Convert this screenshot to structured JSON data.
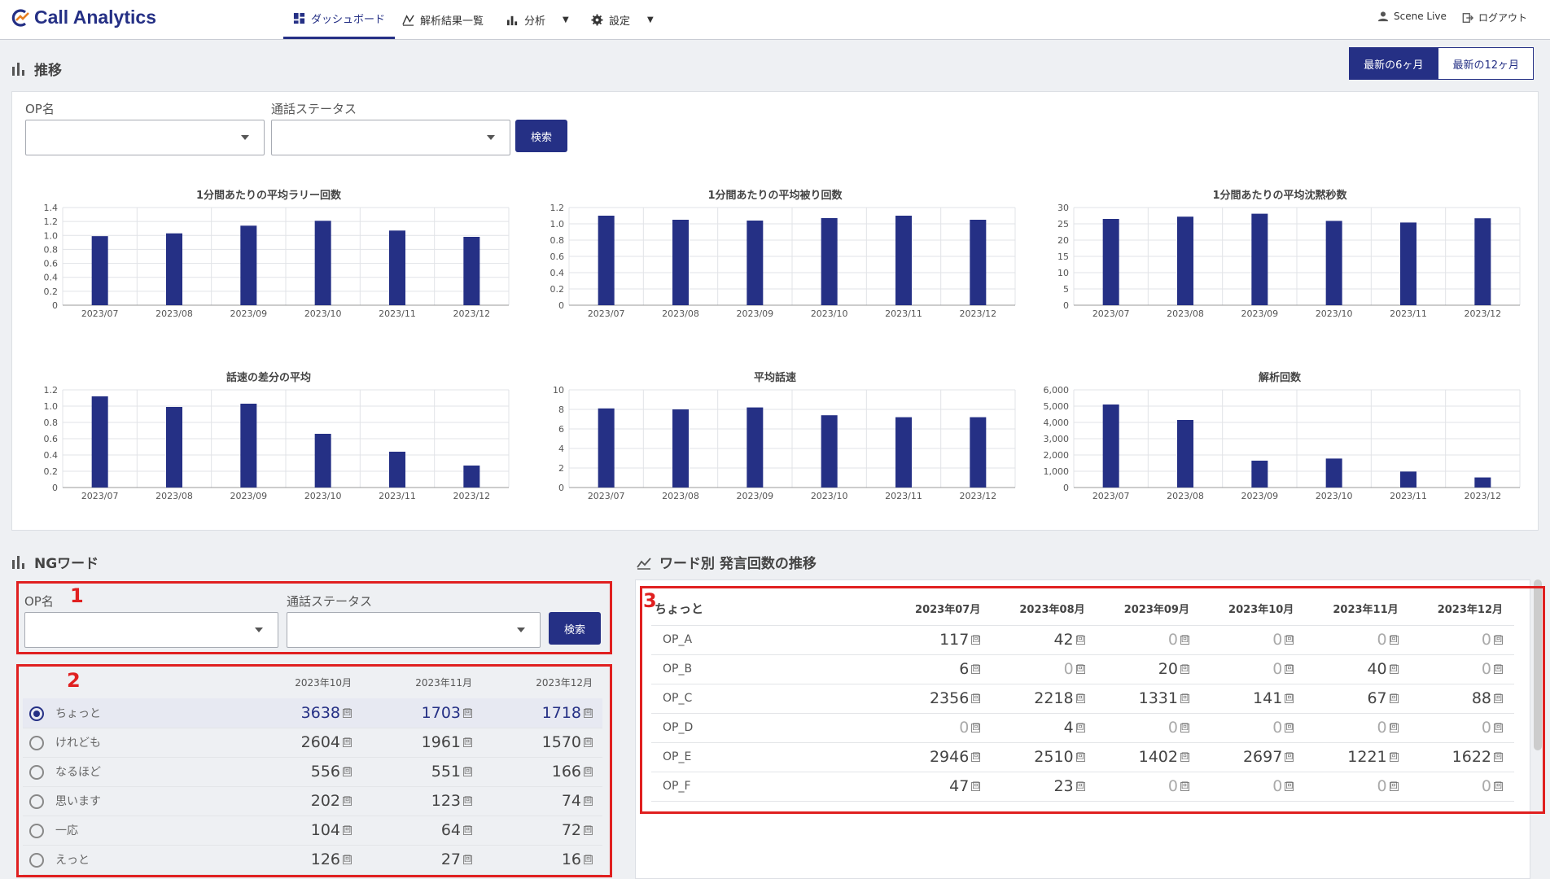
{
  "app": {
    "title": "Call Analytics"
  },
  "nav": {
    "dashboard": "ダッシュボード",
    "results": "解析結果一覧",
    "analysis": "分析",
    "settings": "設定",
    "user": "Scene Live",
    "logout": "ログアウト"
  },
  "trend": {
    "title": "推移",
    "toggle_6": "最新の6ヶ月",
    "toggle_12": "最新の12ヶ月",
    "op_label": "OP名",
    "status_label": "通話ステータス",
    "search": "検索"
  },
  "charts": [
    {
      "title": "1分間あたりの平均ラリー回数",
      "type": "bar",
      "categories": [
        "2023/07",
        "2023/08",
        "2023/09",
        "2023/10",
        "2023/11",
        "2023/12"
      ],
      "values": [
        0.99,
        1.03,
        1.14,
        1.21,
        1.07,
        0.98
      ],
      "ylim": [
        0,
        1.4
      ],
      "ticks": [
        "0",
        "0.2",
        "0.4",
        "0.6",
        "0.8",
        "1.0",
        "1.2",
        "1.4"
      ],
      "tickvals": [
        0,
        0.2,
        0.4,
        0.6,
        0.8,
        1.0,
        1.2,
        1.4
      ]
    },
    {
      "title": "1分間あたりの平均被り回数",
      "type": "bar",
      "categories": [
        "2023/07",
        "2023/08",
        "2023/09",
        "2023/10",
        "2023/11",
        "2023/12"
      ],
      "values": [
        1.1,
        1.05,
        1.04,
        1.07,
        1.1,
        1.05
      ],
      "ylim": [
        0,
        1.2
      ],
      "ticks": [
        "0",
        "0.2",
        "0.4",
        "0.6",
        "0.8",
        "1.0",
        "1.2"
      ],
      "tickvals": [
        0,
        0.2,
        0.4,
        0.6,
        0.8,
        1.0,
        1.2
      ]
    },
    {
      "title": "1分間あたりの平均沈黙秒数",
      "type": "bar",
      "categories": [
        "2023/07",
        "2023/08",
        "2023/09",
        "2023/10",
        "2023/11",
        "2023/12"
      ],
      "values": [
        26.5,
        27.2,
        28.1,
        25.9,
        25.4,
        26.7
      ],
      "ylim": [
        0,
        30
      ],
      "ticks": [
        "0",
        "5",
        "10",
        "15",
        "20",
        "25",
        "30"
      ],
      "tickvals": [
        0,
        5,
        10,
        15,
        20,
        25,
        30
      ]
    },
    {
      "title": "話速の差分の平均",
      "type": "bar",
      "categories": [
        "2023/07",
        "2023/08",
        "2023/09",
        "2023/10",
        "2023/11",
        "2023/12"
      ],
      "values": [
        1.12,
        0.99,
        1.03,
        0.66,
        0.44,
        0.27
      ],
      "ylim": [
        0,
        1.2
      ],
      "ticks": [
        "0",
        "0.2",
        "0.4",
        "0.6",
        "0.8",
        "1.0",
        "1.2"
      ],
      "tickvals": [
        0,
        0.2,
        0.4,
        0.6,
        0.8,
        1.0,
        1.2
      ]
    },
    {
      "title": "平均話速",
      "type": "bar",
      "categories": [
        "2023/07",
        "2023/08",
        "2023/09",
        "2023/10",
        "2023/11",
        "2023/12"
      ],
      "values": [
        8.1,
        8.0,
        8.2,
        7.4,
        7.2,
        7.2
      ],
      "ylim": [
        0,
        10
      ],
      "ticks": [
        "0",
        "2",
        "4",
        "6",
        "8",
        "10"
      ],
      "tickvals": [
        0,
        2,
        4,
        6,
        8,
        10
      ]
    },
    {
      "title": "解析回数",
      "type": "bar",
      "categories": [
        "2023/07",
        "2023/08",
        "2023/09",
        "2023/10",
        "2023/11",
        "2023/12"
      ],
      "values": [
        5100,
        4150,
        1650,
        1780,
        980,
        620
      ],
      "ylim": [
        0,
        6000
      ],
      "ticks": [
        "0",
        "1,000",
        "2,000",
        "3,000",
        "4,000",
        "5,000",
        "6,000"
      ],
      "tickvals": [
        0,
        1000,
        2000,
        3000,
        4000,
        5000,
        6000
      ]
    }
  ],
  "ng": {
    "title": "NGワード",
    "op_label": "OP名",
    "status_label": "通話ステータス",
    "search": "検索",
    "columns": [
      "2023年10月",
      "2023年11月",
      "2023年12月"
    ],
    "unit": "回",
    "rows": [
      {
        "word": "ちょっと",
        "values": [
          "3638",
          "1703",
          "1718"
        ],
        "selected": true
      },
      {
        "word": "けれども",
        "values": [
          "2604",
          "1961",
          "1570"
        ],
        "selected": false
      },
      {
        "word": "なるほど",
        "values": [
          "556",
          "551",
          "166"
        ],
        "selected": false
      },
      {
        "word": "思います",
        "values": [
          "202",
          "123",
          "74"
        ],
        "selected": false
      },
      {
        "word": "一応",
        "values": [
          "104",
          "64",
          "72"
        ],
        "selected": false
      },
      {
        "word": "えっと",
        "values": [
          "126",
          "27",
          "16"
        ],
        "selected": false
      }
    ]
  },
  "word_trend": {
    "title": "ワード別 発言回数の推移",
    "corner": "ちょっと",
    "columns": [
      "2023年07月",
      "2023年08月",
      "2023年09月",
      "2023年10月",
      "2023年11月",
      "2023年12月"
    ],
    "unit": "回",
    "rows": [
      {
        "op": "OP_A",
        "values": [
          "117",
          "42",
          "0",
          "0",
          "0",
          "0"
        ]
      },
      {
        "op": "OP_B",
        "values": [
          "6",
          "0",
          "20",
          "0",
          "40",
          "0"
        ]
      },
      {
        "op": "OP_C",
        "values": [
          "2356",
          "2218",
          "1331",
          "141",
          "67",
          "88"
        ]
      },
      {
        "op": "OP_D",
        "values": [
          "0",
          "4",
          "0",
          "0",
          "0",
          "0"
        ]
      },
      {
        "op": "OP_E",
        "values": [
          "2946",
          "2510",
          "1402",
          "2697",
          "1221",
          "1622"
        ]
      },
      {
        "op": "OP_F",
        "values": [
          "47",
          "23",
          "0",
          "0",
          "0",
          "0"
        ]
      }
    ]
  },
  "annotations": {
    "n1": "1",
    "n2": "2",
    "n3": "3"
  },
  "colors": {
    "accent": "#253085",
    "highlight": "#e02020"
  }
}
